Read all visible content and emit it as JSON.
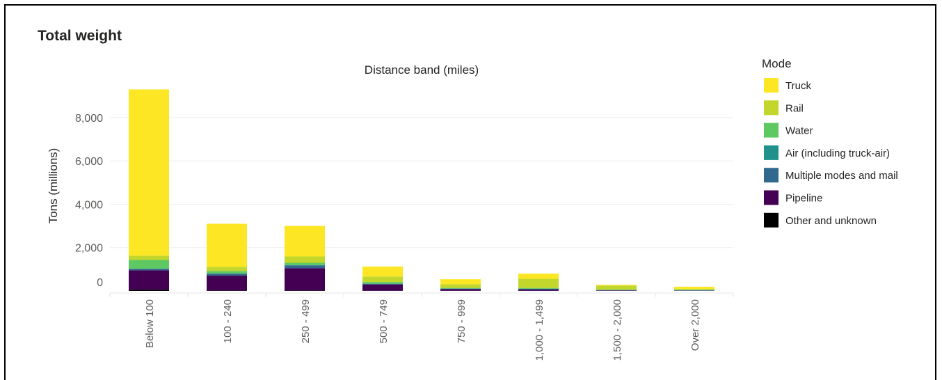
{
  "chart_data": {
    "type": "bar",
    "stacked": true,
    "title": "Total weight",
    "xlabel": "Distance band (miles)",
    "ylabel": "Tons (millions)",
    "yticks": [
      0,
      2000,
      4000,
      6000,
      8000
    ],
    "ytick_labels": [
      "0",
      "2,000",
      "4,000",
      "6,000",
      "8,000"
    ],
    "ylim": [
      -400,
      9600
    ],
    "grid": true,
    "legend_title": "Mode",
    "legend_position": "right",
    "categories": [
      "Below 100",
      "100 - 240",
      "250 - 499",
      "500 - 749",
      "750 - 999",
      "1,000 - 1,499",
      "1,500 - 2,000",
      "Over 2,000"
    ],
    "series": [
      {
        "name": "Other and unknown",
        "color": "#000000",
        "values": [
          60,
          20,
          20,
          10,
          5,
          5,
          3,
          3
        ]
      },
      {
        "name": "Pipeline",
        "color": "#440154",
        "values": [
          890,
          690,
          1030,
          290,
          80,
          60,
          20,
          10
        ]
      },
      {
        "name": "Multiple modes and mail",
        "color": "#31688e",
        "values": [
          70,
          80,
          130,
          30,
          20,
          30,
          15,
          10
        ]
      },
      {
        "name": "Air (including truck-air)",
        "color": "#21918c",
        "values": [
          10,
          10,
          10,
          5,
          5,
          5,
          5,
          10
        ]
      },
      {
        "name": "Water",
        "color": "#5ec962",
        "values": [
          400,
          120,
          110,
          80,
          30,
          40,
          20,
          20
        ]
      },
      {
        "name": "Rail",
        "color": "#c3d62b",
        "values": [
          200,
          190,
          290,
          250,
          170,
          420,
          180,
          40
        ]
      },
      {
        "name": "Truck",
        "color": "#fde725",
        "values": [
          7670,
          1990,
          1410,
          460,
          230,
          240,
          40,
          100
        ]
      }
    ]
  }
}
